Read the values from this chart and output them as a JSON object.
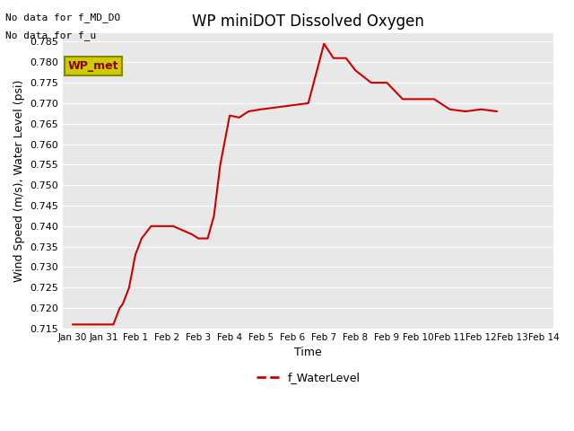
{
  "title": "WP miniDOT Dissolved Oxygen",
  "ylabel": "Wind Speed (m/s), Water Level (psi)",
  "xlabel": "Time",
  "bg_color": "#e8e8e8",
  "line_color": "#cc0000",
  "line_width": 1.5,
  "annotations": [
    "No data for f_MD_DO",
    "No data for f_u"
  ],
  "legend_label": "f_WaterLevel",
  "legend_box_color": "#cccc00",
  "legend_box_edge": "#888800",
  "wp_met_label": "WP_met",
  "x_tick_labels": [
    "Jan 30",
    "Jan 31",
    "Feb 1",
    "Feb 2",
    "Feb 3",
    "Feb 4",
    "Feb 5",
    "Feb 6",
    "Feb 7",
    "Feb 8",
    "Feb 9",
    "Feb 10",
    "Feb 11",
    "Feb 12",
    "Feb 13",
    "Feb 14"
  ],
  "ylim": [
    0.715,
    0.787
  ],
  "yticks": [
    0.715,
    0.72,
    0.725,
    0.73,
    0.735,
    0.74,
    0.745,
    0.75,
    0.755,
    0.76,
    0.765,
    0.77,
    0.775,
    0.78,
    0.785
  ],
  "x_values": [
    0,
    1,
    1.3,
    1.5,
    1.6,
    1.8,
    2.0,
    2.2,
    2.5,
    2.7,
    3.0,
    3.2,
    3.5,
    3.8,
    4.0,
    4.05,
    4.1,
    4.3,
    4.5,
    4.7,
    5.0,
    5.3,
    5.6,
    6.0,
    6.5,
    7.0,
    7.5,
    8.0,
    8.3,
    8.7,
    9.0,
    9.5,
    10.0,
    10.5,
    11.0,
    11.5,
    12.0,
    12.5,
    13.0,
    13.5
  ],
  "y_values": [
    0.716,
    0.716,
    0.716,
    0.72,
    0.721,
    0.725,
    0.733,
    0.737,
    0.74,
    0.74,
    0.74,
    0.74,
    0.739,
    0.738,
    0.737,
    0.737,
    0.737,
    0.737,
    0.7425,
    0.755,
    0.767,
    0.7665,
    0.768,
    0.7685,
    0.769,
    0.7695,
    0.77,
    0.7845,
    0.781,
    0.781,
    0.778,
    0.775,
    0.775,
    0.771,
    0.771,
    0.771,
    0.7685,
    0.768,
    0.7685,
    0.768
  ]
}
